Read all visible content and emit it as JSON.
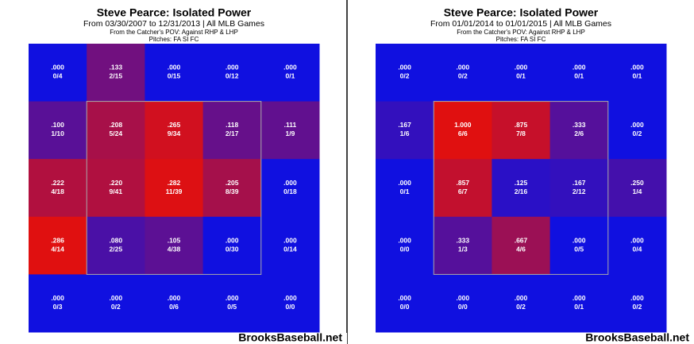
{
  "chart_data": [
    {
      "type": "heatmap",
      "title": "Steve Pearce: Isolated Power",
      "subtitle": [
        "From 03/30/2007 to 12/31/2013 | All MLB Games",
        "From the Catcher's POV:  Against RHP & LHP",
        "Pitches: FA  SI  FC"
      ],
      "values": [
        [
          0,
          0.133,
          0,
          0,
          0
        ],
        [
          0.1,
          0.208,
          0.265,
          0.118,
          0.111
        ],
        [
          0.222,
          0.22,
          0.282,
          0.205,
          0
        ],
        [
          0.286,
          0.08,
          0.105,
          0,
          0
        ],
        [
          0,
          0,
          0,
          0,
          0
        ]
      ],
      "value_labels": [
        [
          ".000",
          ".133",
          ".000",
          ".000",
          ".000"
        ],
        [
          ".100",
          ".208",
          ".265",
          ".118",
          ".111"
        ],
        [
          ".222",
          ".220",
          ".282",
          ".205",
          ".000"
        ],
        [
          ".286",
          ".080",
          ".105",
          ".000",
          ".000"
        ],
        [
          ".000",
          ".000",
          ".000",
          ".000",
          ".000"
        ]
      ],
      "counts": [
        [
          "0/4",
          "2/15",
          "0/15",
          "0/12",
          "0/1"
        ],
        [
          "1/10",
          "5/24",
          "9/34",
          "2/17",
          "1/9"
        ],
        [
          "4/18",
          "9/41",
          "11/39",
          "8/39",
          "0/18"
        ],
        [
          "4/14",
          "2/25",
          "4/38",
          "0/30",
          "0/14"
        ],
        [
          "0/3",
          "0/2",
          "0/6",
          "0/5",
          "0/0"
        ]
      ],
      "color_low": "#1010e0",
      "color_high": "#e01010",
      "watermark": "BrooksBaseball.net"
    },
    {
      "type": "heatmap",
      "title": "Steve Pearce: Isolated Power",
      "subtitle": [
        "From 01/01/2014 to 01/01/2015 | All MLB Games",
        "From the Catcher's POV:  Against RHP & LHP",
        "Pitches: FA  SI  FC"
      ],
      "values": [
        [
          0,
          0,
          0,
          0,
          0
        ],
        [
          0.167,
          1,
          0.875,
          0.333,
          0
        ],
        [
          0,
          0.857,
          0.125,
          0.167,
          0.25
        ],
        [
          0,
          0.333,
          0.667,
          0,
          0
        ],
        [
          0,
          0,
          0,
          0,
          0
        ]
      ],
      "value_labels": [
        [
          ".000",
          ".000",
          ".000",
          ".000",
          ".000"
        ],
        [
          ".167",
          "1.000",
          ".875",
          ".333",
          ".000"
        ],
        [
          ".000",
          ".857",
          ".125",
          ".167",
          ".250"
        ],
        [
          ".000",
          ".333",
          ".667",
          ".000",
          ".000"
        ],
        [
          ".000",
          ".000",
          ".000",
          ".000",
          ".000"
        ]
      ],
      "counts": [
        [
          "0/2",
          "0/2",
          "0/1",
          "0/1",
          "0/1"
        ],
        [
          "1/6",
          "6/6",
          "7/8",
          "2/6",
          "0/2"
        ],
        [
          "0/1",
          "6/7",
          "2/16",
          "2/12",
          "1/4"
        ],
        [
          "0/0",
          "1/3",
          "4/6",
          "0/5",
          "0/4"
        ],
        [
          "0/0",
          "0/0",
          "0/2",
          "0/1",
          "0/2"
        ]
      ],
      "color_low": "#1010e0",
      "color_high": "#e01010",
      "watermark": "BrooksBaseball.net"
    }
  ]
}
